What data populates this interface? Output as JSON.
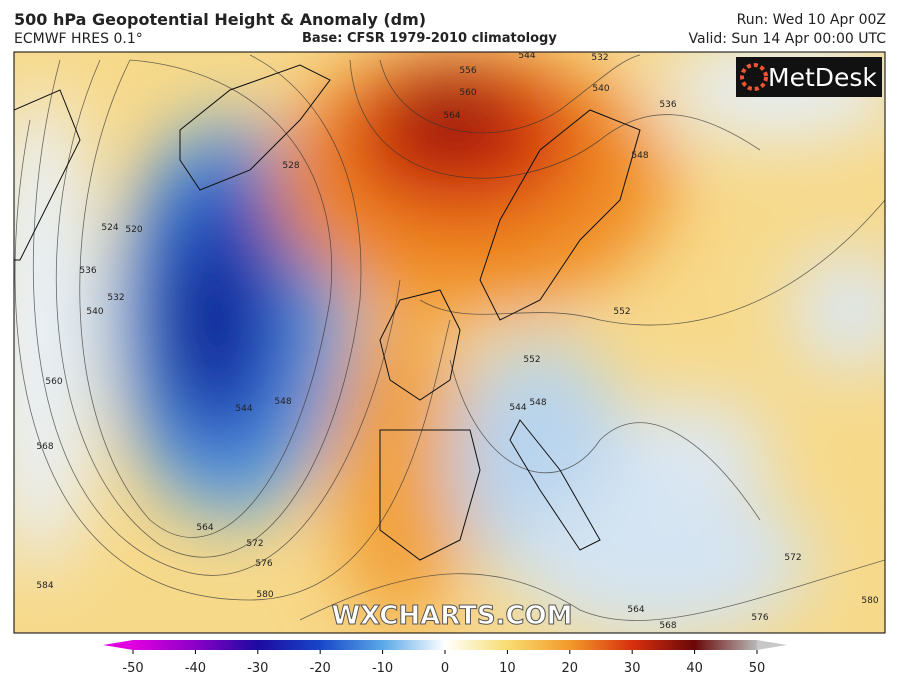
{
  "header": {
    "title": "500 hPa Geopotential Height & Anomaly (dm)",
    "model": "ECMWF HRES 0.1°",
    "base": "Base: CFSR 1979-2010 climatology",
    "run": "Run: Wed 10 Apr 00Z",
    "valid": "Valid: Sun 14 Apr 00:00 UTC"
  },
  "logo": "MetDesk",
  "watermark": "WXCHARTS.COM",
  "contour_labels": [
    528,
    524,
    520,
    536,
    532,
    540,
    560,
    568,
    544,
    548,
    564,
    572,
    576,
    580,
    584,
    556,
    560,
    564,
    544,
    532,
    540,
    536,
    548,
    552,
    552,
    548,
    544,
    572,
    576,
    564,
    568,
    580
  ],
  "colorbar": {
    "lim": [
      -50,
      50
    ],
    "ticks": [
      -50,
      -40,
      -30,
      -20,
      -10,
      0,
      10,
      20,
      30,
      40,
      50
    ]
  }
}
